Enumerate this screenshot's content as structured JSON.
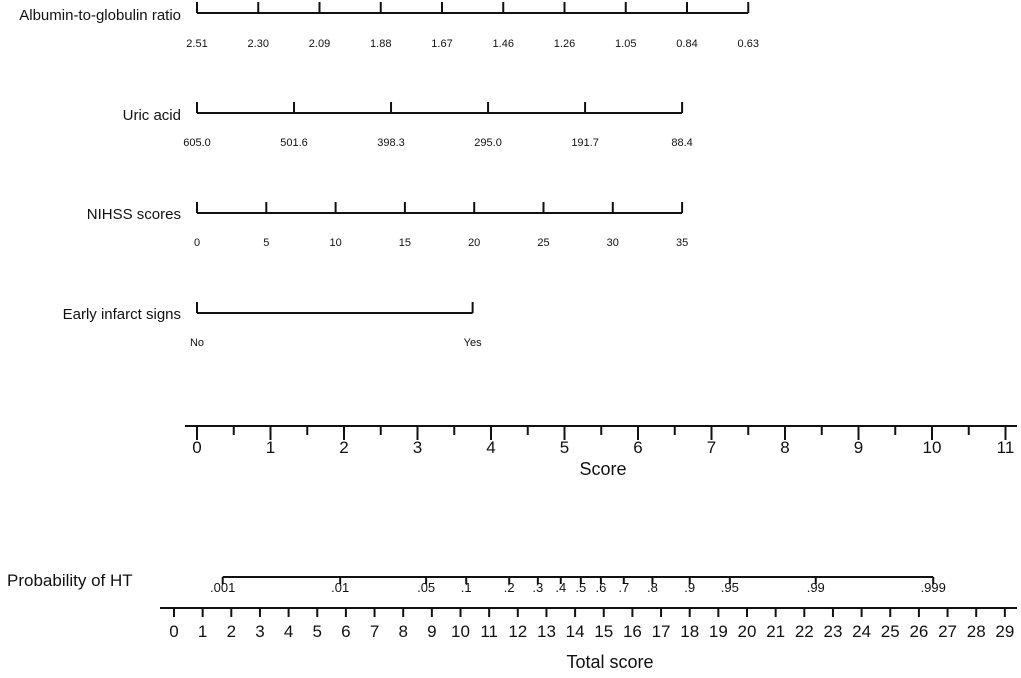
{
  "chart_data": {
    "type": "nomogram",
    "variables": [
      {
        "name": "Albumin-to-globulin ratio",
        "ticks": [
          "2.51",
          "2.30",
          "2.09",
          "1.88",
          "1.67",
          "1.46",
          "1.26",
          "1.05",
          "0.84",
          "0.63"
        ],
        "score_range": [
          0,
          7.5
        ]
      },
      {
        "name": "Uric acid",
        "ticks": [
          "605.0",
          "501.6",
          "398.3",
          "295.0",
          "191.7",
          "88.4"
        ],
        "score_range": [
          0,
          6.6
        ]
      },
      {
        "name": "NIHSS scores",
        "ticks": [
          "0",
          "5",
          "10",
          "15",
          "20",
          "25",
          "30",
          "35"
        ],
        "score_range": [
          0,
          6.6
        ]
      },
      {
        "name": "Early infarct signs",
        "ticks": [
          "No",
          "Yes"
        ],
        "score_range": [
          0,
          3.75
        ]
      }
    ],
    "score_axis": {
      "title": "Score",
      "labels": [
        "0",
        "1",
        "2",
        "3",
        "4",
        "5",
        "6",
        "7",
        "8",
        "9",
        "10",
        "11"
      ],
      "minor_step": 0.5
    },
    "probability_axis": {
      "title": "Probability of HT",
      "labels": [
        ".001",
        ".01",
        ".05",
        ".1",
        ".2",
        ".3",
        ".4",
        ".5",
        ".6",
        ".7",
        ".8",
        ".9",
        ".95",
        ".99",
        ".999"
      ],
      "total_score_positions": [
        1.7,
        5.8,
        8.8,
        10.2,
        11.7,
        12.7,
        13.5,
        14.2,
        14.9,
        15.7,
        16.7,
        18.0,
        19.4,
        22.4,
        26.5
      ]
    },
    "total_axis": {
      "title": "Total score",
      "labels": [
        "0",
        "1",
        "2",
        "3",
        "4",
        "5",
        "6",
        "7",
        "8",
        "9",
        "10",
        "11",
        "12",
        "13",
        "14",
        "15",
        "16",
        "17",
        "18",
        "19",
        "20",
        "21",
        "22",
        "23",
        "24",
        "25",
        "26",
        "27",
        "28",
        "29"
      ]
    }
  }
}
